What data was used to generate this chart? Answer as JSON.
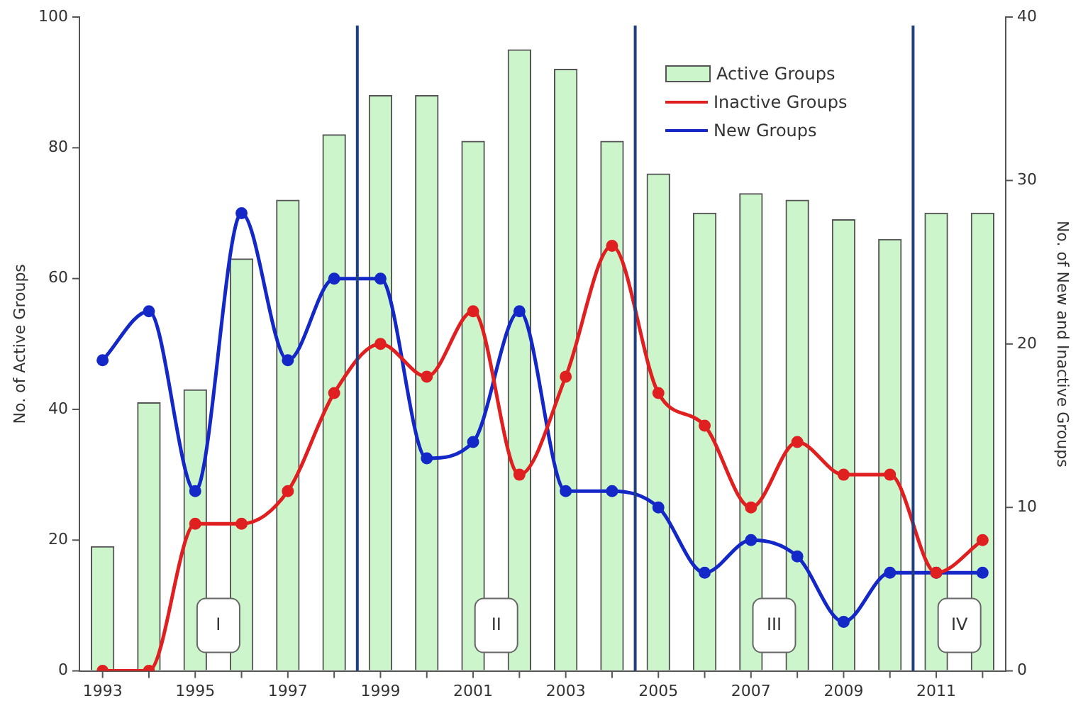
{
  "chart_data": {
    "type": "bar",
    "ylabel": "No. of Active Groups",
    "y2label": "No. of New and Inactive Groups",
    "x": [
      1993,
      1994,
      1995,
      1996,
      1997,
      1998,
      1999,
      2000,
      2001,
      2002,
      2003,
      2004,
      2005,
      2006,
      2007,
      2008,
      2009,
      2010,
      2011,
      2012
    ],
    "xlim": [
      1992.5,
      2012.5
    ],
    "xticks": [
      1993,
      {
        "value": 1994,
        "label": null
      },
      1995,
      {
        "value": 1996,
        "label": null
      },
      1997,
      {
        "value": 1998,
        "label": null
      },
      1999,
      {
        "value": 2000,
        "label": null
      },
      2001,
      {
        "value": 2002,
        "label": null
      },
      2003,
      {
        "value": 2004,
        "label": null
      },
      2005,
      {
        "value": 2006,
        "label": null
      },
      2007,
      {
        "value": 2008,
        "label": null
      },
      2009,
      {
        "value": 2010,
        "label": null
      },
      2011,
      {
        "value": 2012,
        "label": null
      }
    ],
    "ylim": [
      0,
      100
    ],
    "yticks": [
      0,
      20,
      40,
      60,
      80,
      100
    ],
    "y2lim": [
      0,
      40
    ],
    "y2ticks": [
      0,
      10,
      20,
      30,
      40
    ],
    "series": [
      {
        "name": "Active Groups",
        "color": "#ccf5cc",
        "values": [
          19,
          41,
          43,
          63,
          72,
          82,
          88,
          88,
          81,
          95,
          92,
          81,
          76,
          70,
          73,
          72,
          69,
          66,
          70,
          70
        ]
      },
      {
        "name": "Inactive Groups",
        "type": "line",
        "axis": "y2",
        "color": "#e02020",
        "values": [
          0,
          0,
          9,
          9,
          11,
          17,
          20,
          18,
          22,
          12,
          18,
          26,
          17,
          15,
          10,
          14,
          12,
          12,
          6,
          8
        ]
      },
      {
        "name": "New Groups",
        "type": "line",
        "axis": "y2",
        "color": "#1428c8",
        "values": [
          19,
          22,
          11,
          28,
          19,
          24,
          24,
          13,
          14,
          22,
          11,
          11,
          10,
          6,
          8,
          7,
          3,
          6,
          6,
          6
        ]
      }
    ],
    "ref_lines": [
      {
        "axis": "x",
        "value": 1998.5,
        "color": "#1f3f7f"
      },
      {
        "axis": "x",
        "value": 2004.5,
        "color": "#1f3f7f"
      },
      {
        "axis": "x",
        "value": 2010.5,
        "color": "#1f3f7f"
      }
    ],
    "annotations": [
      "I",
      "II",
      "III",
      "IV"
    ],
    "marker": "circle",
    "line_style": "solid",
    "grid": false,
    "legend": "top right"
  }
}
